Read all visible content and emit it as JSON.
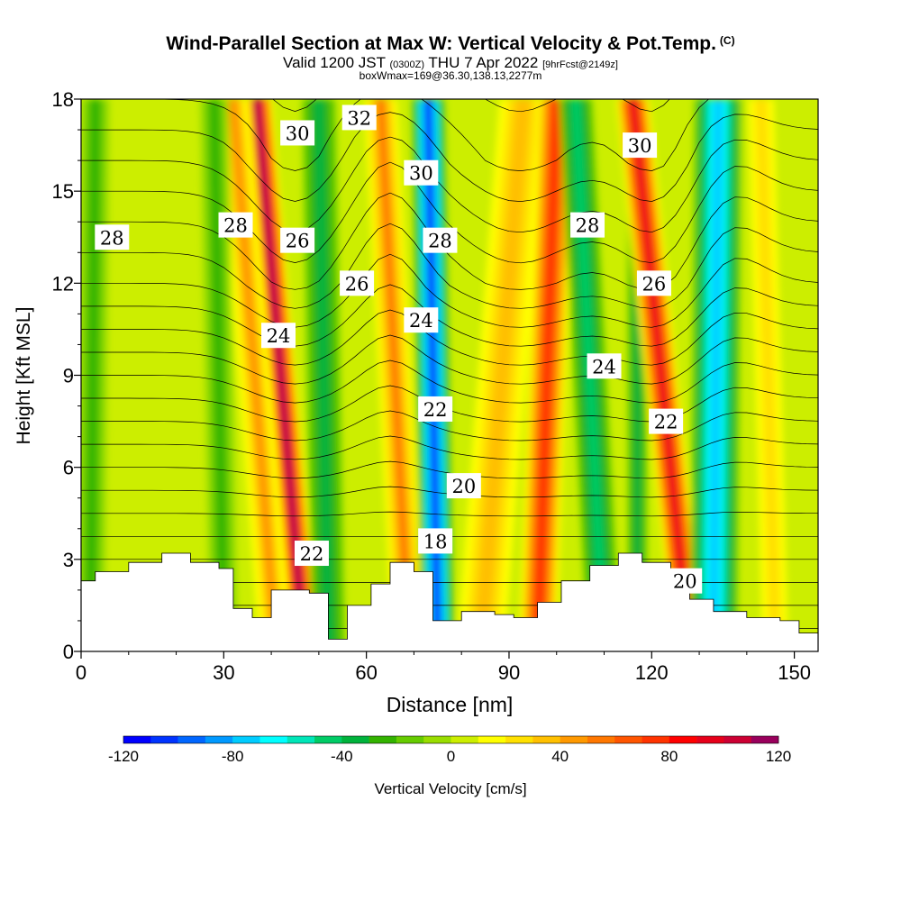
{
  "title": {
    "main": "Wind-Parallel Section at Max W: Vertical Velocity & Pot.Temp.",
    "copyright": "(C)",
    "valid_prefix": "Valid 1200 JST",
    "valid_utc": "(0300Z)",
    "valid_date": "THU 7 Apr 2022",
    "forecast": "[9hrFcst@2149z]",
    "box": "boxWmax=169@36.30,138.13,2277m"
  },
  "colors": {
    "palette": [
      "#0000ff",
      "#0033ff",
      "#0066ff",
      "#0099ff",
      "#00ccff",
      "#00ffff",
      "#00e6b8",
      "#00cc66",
      "#00b33c",
      "#33b300",
      "#66cc00",
      "#99dd00",
      "#ccee00",
      "#ffff00",
      "#ffe000",
      "#ffc000",
      "#ff9900",
      "#ff7700",
      "#ff5500",
      "#ff3300",
      "#ff0000",
      "#e6001a",
      "#cc0033",
      "#99005c",
      "#660080",
      "#4b0082"
    ]
  },
  "chart_data": {
    "type": "heatmap",
    "xlabel": "Distance [nm]",
    "ylabel": "Height [Kft MSL]",
    "xlim": [
      0,
      155
    ],
    "ylim": [
      0,
      18
    ],
    "xticks": [
      0,
      30,
      60,
      90,
      120,
      150
    ],
    "yticks": [
      0,
      3,
      6,
      9,
      12,
      15,
      18
    ],
    "colorbar": {
      "label": "Vertical Velocity [cm/s]",
      "min": -120,
      "max": 120,
      "ticks": [
        -120,
        -80,
        -40,
        0,
        40,
        80,
        120
      ]
    },
    "velocity_bands": [
      {
        "x_bottom": 47,
        "x_top": 37,
        "w": 110,
        "width": 3.2
      },
      {
        "x_bottom": 41,
        "x_top": 32,
        "w": 40,
        "width": 3.5
      },
      {
        "x_bottom": 52,
        "x_top": 50,
        "w": -40,
        "width": 3.5
      },
      {
        "x_bottom": 69,
        "x_top": 63,
        "w": 50,
        "width": 3.5
      },
      {
        "x_bottom": 75,
        "x_top": 73,
        "w": -110,
        "width": 3.5
      },
      {
        "x_bottom": 84,
        "x_top": 93,
        "w": 30,
        "width": 5
      },
      {
        "x_bottom": 96,
        "x_top": 100,
        "w": 75,
        "width": 4
      },
      {
        "x_bottom": 110,
        "x_top": 104,
        "w": -50,
        "width": 3.5
      },
      {
        "x_bottom": 117,
        "x_top": 117,
        "w": -40,
        "width": 2
      },
      {
        "x_bottom": 128,
        "x_top": 116,
        "w": 95,
        "width": 3.5
      },
      {
        "x_bottom": 133,
        "x_top": 134,
        "w": -80,
        "width": 5
      },
      {
        "x_bottom": 146,
        "x_top": 143,
        "w": 25,
        "width": 4
      },
      {
        "x_bottom": 2,
        "x_top": 3,
        "w": -30,
        "width": 3
      },
      {
        "x_bottom": 30,
        "x_top": 28,
        "w": -30,
        "width": 3
      }
    ],
    "terrain": [
      [
        0,
        2.3
      ],
      [
        3,
        2.6
      ],
      [
        10,
        2.9
      ],
      [
        17,
        3.2
      ],
      [
        23,
        2.9
      ],
      [
        29,
        2.7
      ],
      [
        32,
        1.4
      ],
      [
        36,
        1.1
      ],
      [
        40,
        2.0
      ],
      [
        48,
        1.9
      ],
      [
        52,
        0.4
      ],
      [
        56,
        1.5
      ],
      [
        61,
        2.2
      ],
      [
        65,
        2.9
      ],
      [
        70,
        2.6
      ],
      [
        74,
        1.0
      ],
      [
        80,
        1.3
      ],
      [
        87,
        1.2
      ],
      [
        91,
        1.1
      ],
      [
        96,
        1.6
      ],
      [
        101,
        2.3
      ],
      [
        107,
        2.8
      ],
      [
        113,
        3.2
      ],
      [
        118,
        2.9
      ],
      [
        124,
        2.6
      ],
      [
        128,
        1.7
      ],
      [
        133,
        1.3
      ],
      [
        140,
        1.1
      ],
      [
        147,
        1.0
      ],
      [
        151,
        0.6
      ],
      [
        155,
        0.3
      ]
    ],
    "theta_labels": [
      {
        "text": "28",
        "x": 6.5,
        "y": 13.5
      },
      {
        "text": "28",
        "x": 32.5,
        "y": 13.9
      },
      {
        "text": "26",
        "x": 45.5,
        "y": 13.4
      },
      {
        "text": "30",
        "x": 45.5,
        "y": 16.9
      },
      {
        "text": "32",
        "x": 58.5,
        "y": 17.4
      },
      {
        "text": "26",
        "x": 58,
        "y": 12.0
      },
      {
        "text": "24",
        "x": 41.5,
        "y": 10.3
      },
      {
        "text": "30",
        "x": 71.5,
        "y": 15.6
      },
      {
        "text": "28",
        "x": 75.5,
        "y": 13.4
      },
      {
        "text": "24",
        "x": 71.5,
        "y": 10.8
      },
      {
        "text": "22",
        "x": 74.5,
        "y": 7.9
      },
      {
        "text": "20",
        "x": 80.5,
        "y": 5.4
      },
      {
        "text": "18",
        "x": 74.5,
        "y": 3.6
      },
      {
        "text": "22",
        "x": 48.5,
        "y": 3.2
      },
      {
        "text": "28",
        "x": 106.5,
        "y": 13.9
      },
      {
        "text": "30",
        "x": 117.5,
        "y": 16.5
      },
      {
        "text": "26",
        "x": 120.5,
        "y": 12.0
      },
      {
        "text": "24",
        "x": 110,
        "y": 9.3
      },
      {
        "text": "22",
        "x": 123,
        "y": 7.5
      },
      {
        "text": "20",
        "x": 127,
        "y": 2.3
      }
    ]
  }
}
